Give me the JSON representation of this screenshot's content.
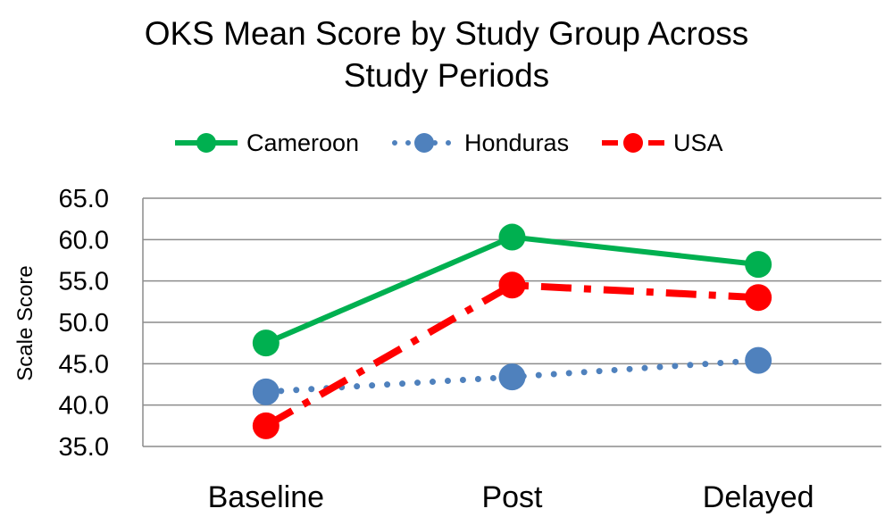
{
  "chart_data": {
    "type": "line",
    "title": "OKS Mean Score by Study Group Across Study Periods",
    "title_lines": [
      "OKS Mean Score by Study Group Across",
      "Study Periods"
    ],
    "xlabel": "",
    "ylabel": "Scale Score",
    "categories": [
      "Baseline",
      "Post",
      "Delayed"
    ],
    "ylim": [
      35.0,
      65.0
    ],
    "yticks": [
      "35.0",
      "40.0",
      "45.0",
      "50.0",
      "55.0",
      "60.0",
      "65.0"
    ],
    "grid": true,
    "legend_position": "top",
    "series": [
      {
        "name": "Cameroon",
        "values": [
          47.5,
          60.3,
          57.0
        ],
        "color": "#00b050",
        "line_style": "solid"
      },
      {
        "name": "Honduras",
        "values": [
          41.6,
          43.4,
          45.4
        ],
        "color": "#4f81bd",
        "line_style": "dotted"
      },
      {
        "name": "USA",
        "values": [
          37.5,
          54.5,
          53.0
        ],
        "color": "#ff0000",
        "line_style": "dashed"
      }
    ]
  }
}
